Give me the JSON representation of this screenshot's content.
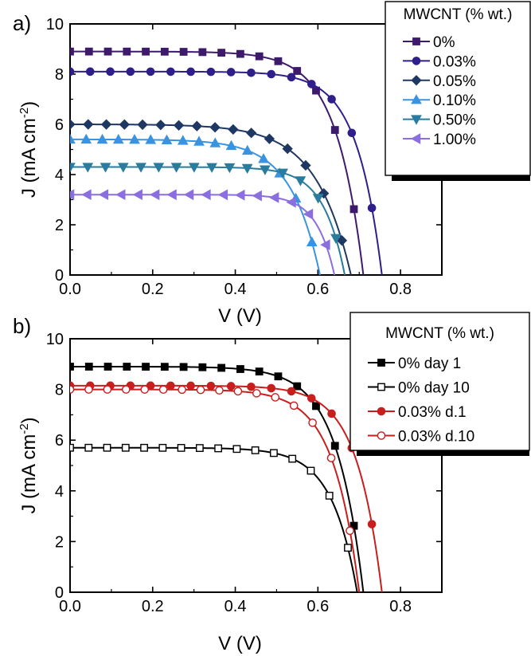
{
  "chart_data": [
    {
      "panel_label": "a)",
      "type": "line",
      "xlabel": "V (V)",
      "ylabel": "J (mA cm⁻²)",
      "ylabel_main": "J (mA cm",
      "ylabel_sup": "-2",
      "ylabel_close": ")",
      "xlim": [
        0,
        0.9
      ],
      "ylim": [
        0,
        10
      ],
      "xticks": [
        0.0,
        0.2,
        0.4,
        0.6,
        0.8
      ],
      "xtick_labels": [
        "0.0",
        "0.2",
        "0.4",
        "0.6",
        "0.8"
      ],
      "yticks": [
        0,
        2,
        4,
        6,
        8,
        10
      ],
      "ytick_labels": [
        "0",
        "2",
        "4",
        "6",
        "8",
        "10"
      ],
      "legend": {
        "title": "MWCNT (% wt.)",
        "placement": "top-right"
      },
      "series": [
        {
          "name": "0%",
          "color": "#3d1a6b",
          "marker": "square",
          "filled": true,
          "jsc": 8.9,
          "voc": 0.71,
          "vk": 0.5,
          "n": 16
        },
        {
          "name": "0.03%",
          "color": "#2e1f8a",
          "marker": "circle",
          "filled": true,
          "jsc": 8.1,
          "voc": 0.755,
          "vk": 0.56,
          "n": 16
        },
        {
          "name": "0.05%",
          "color": "#1f3863",
          "marker": "diamond",
          "filled": true,
          "jsc": 6.0,
          "voc": 0.68,
          "vk": 0.41,
          "n": 16
        },
        {
          "name": "0.10%",
          "color": "#3a93e0",
          "marker": "triangle-up",
          "filled": true,
          "jsc": 5.4,
          "voc": 0.605,
          "vk": 0.38,
          "n": 16
        },
        {
          "name": "0.50%",
          "color": "#2a7c9e",
          "marker": "triangle-down",
          "filled": true,
          "jsc": 4.3,
          "voc": 0.665,
          "vk": 0.5,
          "n": 16
        },
        {
          "name": "1.00%",
          "color": "#8b6ee0",
          "marker": "triangle-left",
          "filled": true,
          "jsc": 3.2,
          "voc": 0.64,
          "vk": 0.5,
          "n": 16
        }
      ]
    },
    {
      "panel_label": "b)",
      "type": "line",
      "xlabel": "V (V)",
      "ylabel": "J (mA cm⁻²)",
      "ylabel_main": "J (mA cm",
      "ylabel_sup": "-2",
      "ylabel_close": ")",
      "xlim": [
        0,
        0.9
      ],
      "ylim": [
        0,
        10
      ],
      "xticks": [
        0.0,
        0.2,
        0.4,
        0.6,
        0.8
      ],
      "xtick_labels": [
        "0.0",
        "0.2",
        "0.4",
        "0.6",
        "0.8"
      ],
      "yticks": [
        0,
        2,
        4,
        6,
        8,
        10
      ],
      "ytick_labels": [
        "0",
        "2",
        "4",
        "6",
        "8",
        "10"
      ],
      "legend": {
        "title": "MWCNT (% wt.)",
        "placement": "top-right"
      },
      "series": [
        {
          "name": "0% day 1",
          "color": "#000000",
          "marker": "square",
          "filled": true,
          "jsc": 8.9,
          "voc": 0.71,
          "vk": 0.5,
          "n": 16
        },
        {
          "name": "0% day 10",
          "color": "#000000",
          "marker": "square",
          "filled": false,
          "jsc": 5.7,
          "voc": 0.695,
          "vk": 0.5,
          "n": 16
        },
        {
          "name": "0.03% d.1",
          "color": "#c81e1e",
          "marker": "circle",
          "filled": true,
          "jsc": 8.15,
          "voc": 0.755,
          "vk": 0.56,
          "n": 16
        },
        {
          "name": "0.03% d.10",
          "color": "#c81e1e",
          "marker": "circle",
          "filled": false,
          "jsc": 8.0,
          "voc": 0.7,
          "vk": 0.5,
          "n": 16
        }
      ]
    }
  ]
}
